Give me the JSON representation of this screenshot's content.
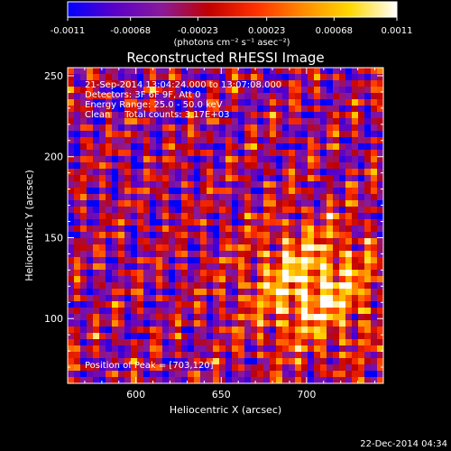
{
  "colorbar": {
    "tick_labels": [
      "-0.0011",
      "-0.00068",
      "-0.00023",
      "0.00023",
      "0.00068",
      "0.0011"
    ],
    "tick_values": [
      -0.0011,
      -0.00068,
      -0.00023,
      0.00023,
      0.00068,
      0.0011
    ],
    "range": [
      -0.0011,
      0.0011
    ],
    "unit_label": "(photons cm⁻² s⁻¹ asec⁻²)",
    "colors": [
      "#0000ff",
      "#5a00c8",
      "#8a1a9a",
      "#c00000",
      "#ff3000",
      "#ff8a00",
      "#ffd800",
      "#ffffff"
    ]
  },
  "chart_data": {
    "type": "heatmap",
    "title": "Reconstructed RHESSI Image",
    "xlabel": "Heliocentric X (arcsec)",
    "ylabel": "Heliocentric Y (arcsec)",
    "xlim": [
      560,
      745
    ],
    "ylim": [
      60,
      255
    ],
    "x_ticks": [
      600,
      650,
      700
    ],
    "y_ticks": [
      100,
      150,
      200,
      250
    ],
    "x_tick_labels": [
      "600",
      "650",
      "700"
    ],
    "y_tick_labels": [
      "100",
      "150",
      "200",
      "250"
    ],
    "annotations": [
      "21-Sep-2014 13:04:24.000 to 13:07:08.000",
      "Detectors: 3F 6F 9F, Att 0",
      "Energy Range: 25.0 - 50.0 keV",
      "Clean     Total counts: 3.17E+03"
    ],
    "peak_label": "Position of Peak = [703,120]",
    "peak_position": [
      703,
      120
    ],
    "grid": false
  },
  "footer": {
    "timestamp": "22-Dec-2014 04:34"
  }
}
